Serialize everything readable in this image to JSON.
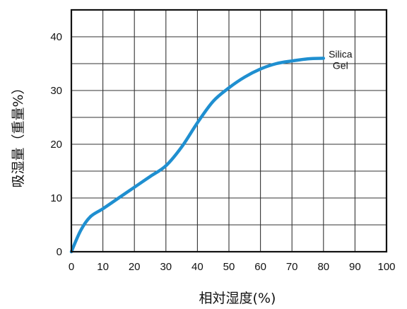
{
  "chart_data": {
    "type": "line",
    "xlabel": "相対湿度(%)",
    "ylabel": "吸湿量（重量%）",
    "xlim": [
      0,
      100
    ],
    "ylim": [
      0,
      45
    ],
    "x_ticks": [
      0,
      10,
      20,
      30,
      40,
      50,
      60,
      70,
      80,
      90,
      100
    ],
    "y_ticks": [
      0,
      10,
      20,
      30,
      40
    ],
    "grid": true,
    "series": [
      {
        "name": "Silica\nGel",
        "color": "#1f8fd0",
        "x": [
          0,
          3,
          6,
          10,
          15,
          20,
          25,
          30,
          35,
          40,
          45,
          50,
          55,
          60,
          65,
          70,
          75,
          80
        ],
        "y": [
          0,
          4,
          6.5,
          8,
          10,
          12,
          14,
          16,
          19.5,
          24,
          28,
          30.5,
          32.5,
          34,
          35,
          35.5,
          35.9,
          36
        ]
      }
    ]
  }
}
